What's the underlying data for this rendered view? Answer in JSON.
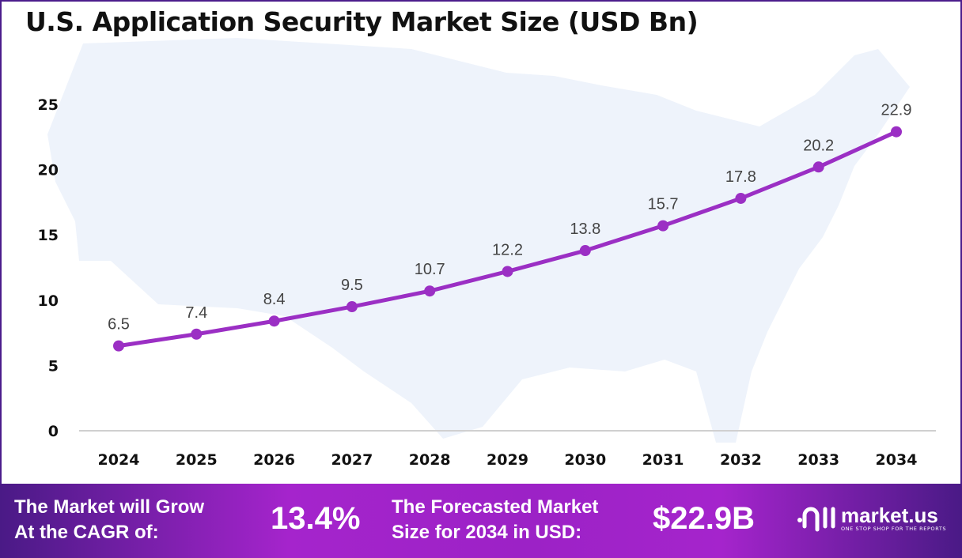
{
  "chart_data": {
    "type": "line",
    "title": "U.S. Application Security Market Size (USD Bn)",
    "xlabel": "",
    "ylabel": "",
    "categories": [
      "2024",
      "2025",
      "2026",
      "2027",
      "2028",
      "2029",
      "2030",
      "2031",
      "2032",
      "2033",
      "2034"
    ],
    "values": [
      6.5,
      7.4,
      8.4,
      9.5,
      10.7,
      12.2,
      13.8,
      15.7,
      17.8,
      20.2,
      22.9
    ],
    "data_labels": [
      "6.5",
      "7.4",
      "8.4",
      "9.5",
      "10.7",
      "12.2",
      "13.8",
      "15.7",
      "17.8",
      "20.2",
      "22.9"
    ],
    "ylim": [
      0,
      25
    ],
    "yticks": [
      "0",
      "5",
      "10",
      "15",
      "20",
      "25"
    ],
    "grid": false,
    "line_color": "#9b2fc4",
    "background": "U.S. map silhouette"
  },
  "footer": {
    "cagr_label_line1": "The Market will Grow",
    "cagr_label_line2": "At the CAGR of:",
    "cagr_value": "13.4%",
    "forecast_label_line1": "The Forecasted Market",
    "forecast_label_line2": "Size for 2034 in USD:",
    "forecast_value": "$22.9B",
    "logo_name": "market.us",
    "logo_tagline": "ONE STOP SHOP FOR THE REPORTS"
  }
}
